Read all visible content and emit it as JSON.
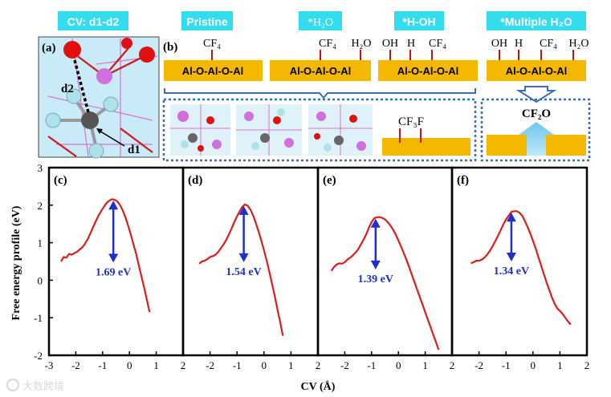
{
  "figure": {
    "labels": {
      "cv_tag": "CV: d1-d2",
      "pristine": "Pristine",
      "h2o": "*H₂O",
      "hoh": "*H-OH",
      "multi": "*Multiple H₂O",
      "panel_a": "(a)",
      "panel_b": "(b)",
      "d1": "d1",
      "d2": "d2",
      "chain": "Al-O-Al-O-Al",
      "cf4": "CF₄",
      "h2o_mol": "H₂O",
      "oh": "OH",
      "h": "H",
      "cf3f": "CF₃F",
      "cf2o": "CF₂O",
      "watermark": "大数跨境"
    },
    "colors": {
      "cyan_tag": "#33ddee",
      "gold": "#f5b800",
      "curve": "#dd1c1c",
      "arrow_blue": "#1f2fcf",
      "dash_blue": "#3a6fb5",
      "bond_red": "#d01010"
    }
  },
  "chart_data": {
    "type": "line",
    "title": "",
    "xlabel": "CV (Å)",
    "ylabel": "Free energy profile (eV)",
    "ylim": [
      -2,
      3
    ],
    "y_ticks": [
      "3",
      "2",
      "1",
      "0",
      "-1",
      "-2"
    ],
    "panels": [
      {
        "label": "(c)",
        "barrier_label": "1.69 eV",
        "barrier": 1.69,
        "peak_x": -0.6,
        "xlim": [
          -3,
          2
        ],
        "x_ticks": [
          "-3",
          "-2",
          "-1",
          "0",
          "1",
          "2"
        ],
        "x": [
          -2.55,
          -2.45,
          -2.35,
          -2.25,
          -2.15,
          -2.05,
          -1.95,
          -1.85,
          -1.75,
          -1.65,
          -1.55,
          -1.45,
          -1.35,
          -1.25,
          -1.15,
          -1.05,
          -0.95,
          -0.85,
          -0.75,
          -0.65,
          -0.55,
          -0.45,
          -0.35,
          -0.25,
          -0.15,
          -0.05,
          0.05,
          0.15,
          0.25,
          0.35,
          0.45,
          0.55,
          0.65,
          0.75
        ],
        "y": [
          0.5,
          0.62,
          0.6,
          0.7,
          0.68,
          0.72,
          0.76,
          0.82,
          0.88,
          0.98,
          1.1,
          1.26,
          1.42,
          1.58,
          1.72,
          1.85,
          1.96,
          2.06,
          2.12,
          2.16,
          2.14,
          2.1,
          2.0,
          1.86,
          1.68,
          1.46,
          1.22,
          0.96,
          0.7,
          0.4,
          0.1,
          -0.2,
          -0.52,
          -0.85
        ]
      },
      {
        "label": "(d)",
        "barrier_label": "1.54 eV",
        "barrier": 1.54,
        "peak_x": -0.75,
        "xlim": [
          -3,
          2
        ],
        "x_ticks": [
          "-2",
          "-1",
          "0",
          "1",
          "2"
        ],
        "x": [
          -2.4,
          -2.3,
          -2.2,
          -2.1,
          -2.0,
          -1.9,
          -1.8,
          -1.7,
          -1.6,
          -1.5,
          -1.4,
          -1.3,
          -1.2,
          -1.1,
          -1.0,
          -0.9,
          -0.8,
          -0.7,
          -0.6,
          -0.5,
          -0.4,
          -0.3,
          -0.2,
          -0.1,
          0.0,
          0.1,
          0.2,
          0.3,
          0.4,
          0.5,
          0.6,
          0.7
        ],
        "y": [
          0.44,
          0.5,
          0.52,
          0.56,
          0.62,
          0.64,
          0.68,
          0.75,
          0.85,
          0.95,
          1.08,
          1.22,
          1.38,
          1.55,
          1.7,
          1.84,
          1.96,
          2.02,
          1.98,
          1.88,
          1.72,
          1.52,
          1.3,
          1.06,
          0.8,
          0.52,
          0.22,
          -0.1,
          -0.42,
          -0.78,
          -1.12,
          -1.48
        ]
      },
      {
        "label": "(e)",
        "barrier_label": "1.39 eV",
        "barrier": 1.39,
        "peak_x": -0.85,
        "xlim": [
          -3,
          2
        ],
        "x_ticks": [
          "-2",
          "-1",
          "0",
          "1",
          "2"
        ],
        "x": [
          -2.5,
          -2.4,
          -2.3,
          -2.2,
          -2.1,
          -2.0,
          -1.9,
          -1.8,
          -1.7,
          -1.6,
          -1.5,
          -1.4,
          -1.3,
          -1.2,
          -1.1,
          -1.0,
          -0.9,
          -0.8,
          -0.7,
          -0.6,
          -0.5,
          -0.4,
          -0.3,
          -0.2,
          -0.1,
          0.0,
          0.1,
          0.2,
          0.3,
          0.4,
          0.5,
          0.6,
          0.7,
          0.8,
          0.9,
          1.0,
          1.1,
          1.2,
          1.3,
          1.4,
          1.5
        ],
        "y": [
          0.25,
          0.35,
          0.42,
          0.45,
          0.44,
          0.48,
          0.55,
          0.6,
          0.66,
          0.74,
          0.82,
          0.95,
          1.08,
          1.22,
          1.4,
          1.55,
          1.65,
          1.68,
          1.68,
          1.66,
          1.62,
          1.55,
          1.46,
          1.35,
          1.22,
          1.06,
          0.9,
          0.72,
          0.55,
          0.35,
          0.15,
          -0.05,
          -0.25,
          -0.45,
          -0.65,
          -0.85,
          -1.05,
          -1.25,
          -1.45,
          -1.65,
          -1.85
        ]
      },
      {
        "label": "(f)",
        "barrier_label": "1.34 eV",
        "barrier": 1.34,
        "peak_x": -0.8,
        "xlim": [
          -3,
          2
        ],
        "x_ticks": [
          "-2",
          "-1",
          "0",
          "1",
          "2"
        ],
        "x": [
          -2.3,
          -2.2,
          -2.1,
          -2.0,
          -1.9,
          -1.8,
          -1.7,
          -1.6,
          -1.5,
          -1.4,
          -1.3,
          -1.2,
          -1.1,
          -1.0,
          -0.9,
          -0.8,
          -0.7,
          -0.6,
          -0.5,
          -0.4,
          -0.3,
          -0.2,
          -0.1,
          0.0,
          0.1,
          0.2,
          0.3,
          0.4,
          0.5,
          0.6,
          0.7,
          0.8,
          0.9,
          1.0,
          1.1,
          1.2,
          1.3,
          1.4
        ],
        "y": [
          0.45,
          0.48,
          0.52,
          0.52,
          0.55,
          0.6,
          0.68,
          0.78,
          0.9,
          1.04,
          1.18,
          1.33,
          1.48,
          1.62,
          1.72,
          1.82,
          1.84,
          1.84,
          1.8,
          1.72,
          1.58,
          1.42,
          1.25,
          1.05,
          0.85,
          0.62,
          0.4,
          0.18,
          -0.05,
          -0.25,
          -0.45,
          -0.62,
          -0.75,
          -0.82,
          -0.9,
          -1.0,
          -1.1,
          -1.18
        ]
      }
    ]
  }
}
